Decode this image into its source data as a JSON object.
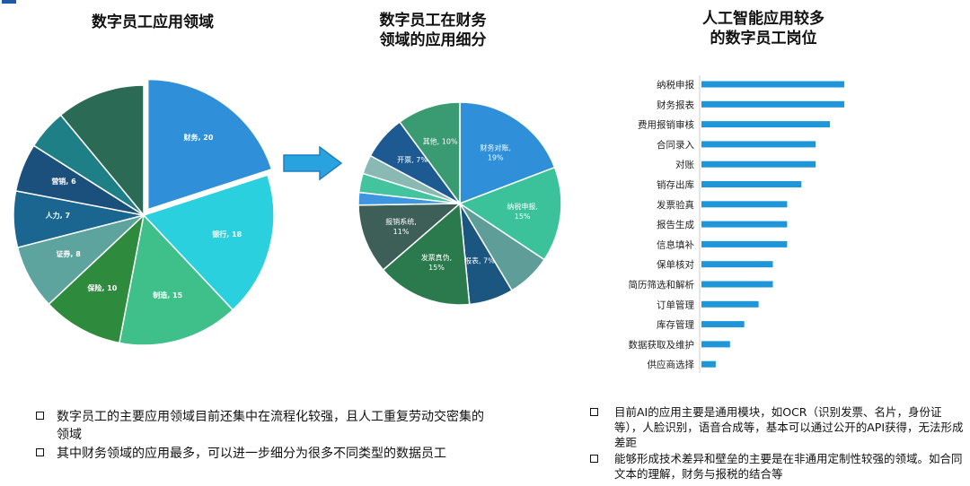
{
  "titles": {
    "pie1": "数字员工应用领域",
    "pie2_line1": "数字员工在财务",
    "pie2_line2": "领域的应用细分",
    "bars_line1": "人工智能应用较多",
    "bars_line2": "的数字员工岗位"
  },
  "chart_data": [
    {
      "type": "pie",
      "title": "数字员工应用领域",
      "slices": [
        {
          "label": "财务, 20",
          "value": 20,
          "color": "#2f8fd8",
          "exploded": true
        },
        {
          "label": "银行, 18",
          "value": 18,
          "color": "#2ad0dd"
        },
        {
          "label": "制造, 15",
          "value": 15,
          "color": "#3fbf8a"
        },
        {
          "label": "保险, 10",
          "value": 10,
          "color": "#2e8a3c"
        },
        {
          "label": "证券, 8",
          "value": 8,
          "color": "#5ea49e"
        },
        {
          "label": "人力, 7",
          "value": 7,
          "color": "#1a6690"
        },
        {
          "label": "营销, 6",
          "value": 6,
          "color": "#1b4f7c"
        },
        {
          "label": "",
          "value": 5,
          "color": "#1e7f87"
        },
        {
          "label": "",
          "value": 11,
          "color": "#2b6a55"
        }
      ]
    },
    {
      "type": "pie",
      "title": "数字员工在财务领域的应用细分",
      "slices": [
        {
          "label": "财务对账, 19%",
          "value": 19,
          "color": "#2f8fd8"
        },
        {
          "label": "纳税申报, 15%",
          "value": 15,
          "color": "#3cc29a"
        },
        {
          "label": "",
          "value": 7,
          "color": "#5f9e98"
        },
        {
          "label": "报表, 7%",
          "value": 7,
          "color": "#1b5680"
        },
        {
          "label": "发票真伪, 15%",
          "value": 15,
          "color": "#2b7a4e"
        },
        {
          "label": "报销系统, 11%",
          "value": 11,
          "color": "#3e5e58"
        },
        {
          "label": "",
          "value": 2,
          "color": "#3e96e0"
        },
        {
          "label": "",
          "value": 3,
          "color": "#44c49e"
        },
        {
          "label": "",
          "value": 3,
          "color": "#8ab8b2"
        },
        {
          "label": "开票, 7%",
          "value": 7,
          "color": "#1e5a92"
        },
        {
          "label": "其他, 10%",
          "value": 10,
          "color": "#3a9a72"
        }
      ]
    },
    {
      "type": "bar",
      "orientation": "horizontal",
      "title": "人工智能应用较多的数字员工岗位",
      "color": "#1e96d8",
      "categories": [
        "纳税申报",
        "财务报表",
        "费用报销审核",
        "合同录入",
        "对账",
        "销存出库",
        "发票验真",
        "报告生成",
        "信息填补",
        "保单核对",
        "简历筛选和解析",
        "订单管理",
        "库存管理",
        "数据获取及维护",
        "供应商选择"
      ],
      "values": [
        100,
        100,
        90,
        80,
        80,
        70,
        60,
        60,
        60,
        50,
        50,
        40,
        30,
        20,
        10
      ]
    }
  ],
  "notes_left": [
    "数字员工的主要应用领域目前还集中在流程化较强，且人工重复劳动交密集的领域",
    "其中财务领域的应用最多，可以进一步细分为很多不同类型的数据员工"
  ],
  "notes_right": [
    "目前AI的应用主要是通用模块，如OCR（识别发票、名片，身份证等），人脸识别，语音合成等，基本可以通过公开的API获得，无法形成差距",
    "能够形成技术差异和壁垒的主要是在非通用定制性较强的领域。如合同文本的理解，财务与报税的结合等"
  ]
}
